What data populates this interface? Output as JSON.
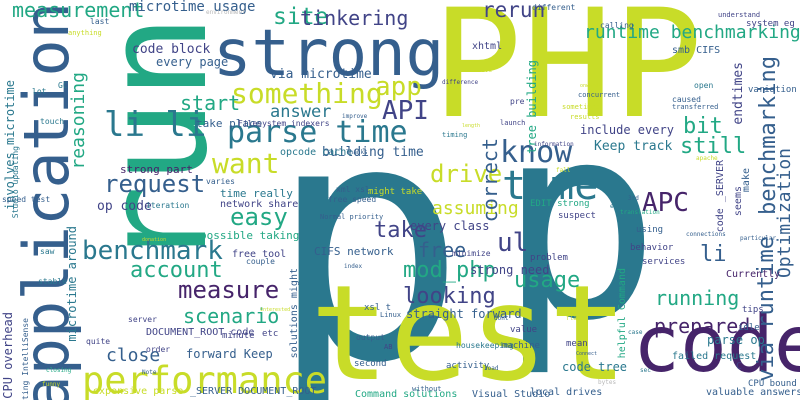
{
  "palette": {
    "purple": "#46246a",
    "indigo": "#414487",
    "blue": "#355f8d",
    "teal": "#2a788e",
    "green": "#22a884",
    "lime": "#7ad151",
    "yellow": "#c8dc28",
    "gray": "#b8b8b8"
  },
  "words": [
    {
      "text": "PHP",
      "color": "yellow"
    },
    {
      "text": "p",
      "color": "teal"
    },
    {
      "text": "test",
      "color": "yellow"
    },
    {
      "text": "run",
      "color": "green"
    },
    {
      "text": "strong",
      "color": "blue"
    },
    {
      "text": "application",
      "color": "blue"
    },
    {
      "text": "code",
      "color": "purple"
    },
    {
      "text": "performance",
      "color": "yellow"
    },
    {
      "text": "parse time",
      "color": "teal"
    },
    {
      "text": "li li",
      "color": "teal"
    },
    {
      "text": "time",
      "color": "teal"
    },
    {
      "text": "something",
      "color": "yellow"
    },
    {
      "text": "know",
      "color": "blue"
    },
    {
      "text": "benchmark",
      "color": "teal"
    },
    {
      "text": "measure",
      "color": "purple"
    },
    {
      "text": "site",
      "color": "green"
    },
    {
      "text": "tinkering",
      "color": "indigo"
    },
    {
      "text": "rerun",
      "color": "indigo"
    },
    {
      "text": "runtime benchmarking",
      "color": "green"
    },
    {
      "text": "measurement",
      "color": "green"
    },
    {
      "text": "app",
      "color": "yellow"
    },
    {
      "text": "API",
      "color": "indigo"
    },
    {
      "text": "answer",
      "color": "teal"
    },
    {
      "text": "want",
      "color": "yellow"
    },
    {
      "text": "request",
      "color": "blue"
    },
    {
      "text": "easy",
      "color": "green"
    },
    {
      "text": "account",
      "color": "green"
    },
    {
      "text": "drive",
      "color": "yellow"
    },
    {
      "text": "APC",
      "color": "purple"
    },
    {
      "text": "ul",
      "color": "indigo"
    },
    {
      "text": "take",
      "color": "indigo"
    },
    {
      "text": "free",
      "color": "blue"
    },
    {
      "text": "mod_php",
      "color": "green"
    },
    {
      "text": "usage",
      "color": "green"
    },
    {
      "text": "looking",
      "color": "indigo"
    },
    {
      "text": "running",
      "color": "green"
    },
    {
      "text": "prepared",
      "color": "purple"
    },
    {
      "text": "scenario",
      "color": "green"
    },
    {
      "text": "close",
      "color": "blue"
    },
    {
      "text": "bit",
      "color": "green"
    },
    {
      "text": "still",
      "color": "green"
    },
    {
      "text": "li",
      "color": "blue"
    },
    {
      "text": "reasoning",
      "color": "green"
    },
    {
      "text": "start",
      "color": "green"
    },
    {
      "text": "assuming",
      "color": "yellow"
    },
    {
      "text": "correct",
      "color": "blue"
    },
    {
      "text": "benchmarking",
      "color": "blue"
    },
    {
      "text": "Optimization",
      "color": "blue"
    },
    {
      "text": "via runtime",
      "color": "blue"
    },
    {
      "text": "microtime usage",
      "color": "blue"
    },
    {
      "text": "code block",
      "color": "indigo"
    },
    {
      "text": "every page",
      "color": "blue"
    },
    {
      "text": "via microtime",
      "color": "blue"
    },
    {
      "text": "building time",
      "color": "blue"
    },
    {
      "text": "Keep track",
      "color": "teal"
    },
    {
      "text": "include every",
      "color": "indigo"
    },
    {
      "text": "endtimes",
      "color": "indigo"
    },
    {
      "text": "strong need",
      "color": "indigo"
    },
    {
      "text": "straight forward",
      "color": "blue"
    },
    {
      "text": "every class",
      "color": "indigo"
    },
    {
      "text": "forward Keep",
      "color": "blue"
    },
    {
      "text": "parse op",
      "color": "teal"
    },
    {
      "text": "code tree",
      "color": "teal"
    },
    {
      "text": "local drives",
      "color": "blue"
    },
    {
      "text": "valuable answers",
      "color": "blue"
    },
    {
      "text": "expensive parse",
      "color": "yellow"
    },
    {
      "text": "_SERVER DOCUMENT_ROOT",
      "color": "blue"
    },
    {
      "text": "DOCUMENT_ROOT code",
      "color": "indigo"
    },
    {
      "text": "CPU overhead",
      "color": "indigo"
    },
    {
      "text": "microtime around",
      "color": "teal"
    },
    {
      "text": "involves microtime",
      "color": "teal"
    },
    {
      "text": "op code",
      "color": "indigo"
    },
    {
      "text": "strong part",
      "color": "purple"
    },
    {
      "text": "opcode cache",
      "color": "teal"
    },
    {
      "text": "take place",
      "color": "blue"
    },
    {
      "text": "Filesystem indexers",
      "color": "indigo"
    },
    {
      "text": "time really",
      "color": "teal"
    },
    {
      "text": "network share",
      "color": "indigo"
    },
    {
      "text": "possible taking",
      "color": "green"
    },
    {
      "text": "free tool",
      "color": "indigo"
    },
    {
      "text": "CIFS network",
      "color": "blue"
    },
    {
      "text": "solutions might",
      "color": "blue"
    },
    {
      "text": "Command solutions",
      "color": "green"
    },
    {
      "text": "Visual Studio",
      "color": "blue"
    },
    {
      "text": "smb CIFS",
      "color": "blue"
    },
    {
      "text": "xhtml",
      "color": "indigo"
    },
    {
      "text": "might take",
      "color": "yellow"
    },
    {
      "text": "EDIT strong",
      "color": "green"
    },
    {
      "text": "failed request",
      "color": "teal"
    },
    {
      "text": "CPU bound",
      "color": "blue"
    },
    {
      "text": "tree building",
      "color": "green"
    },
    {
      "text": "code _SERVER",
      "color": "indigo"
    },
    {
      "text": "seems",
      "color": "indigo"
    },
    {
      "text": "make",
      "color": "blue"
    },
    {
      "text": "variation",
      "color": "blue"
    },
    {
      "text": "system eg",
      "color": "indigo"
    },
    {
      "text": "understand",
      "color": "indigo"
    },
    {
      "text": "idle",
      "color": "blue"
    },
    {
      "text": "tips",
      "color": "indigo"
    },
    {
      "text": "Currently",
      "color": "purple"
    },
    {
      "text": "services",
      "color": "indigo"
    },
    {
      "text": "behavior",
      "color": "indigo"
    },
    {
      "text": "using",
      "color": "blue"
    },
    {
      "text": "suspect",
      "color": "indigo"
    },
    {
      "text": "problem",
      "color": "indigo"
    },
    {
      "text": "minimize",
      "color": "indigo"
    },
    {
      "text": "value",
      "color": "indigo"
    },
    {
      "text": "helpful Command",
      "color": "green"
    },
    {
      "text": "mean",
      "color": "indigo"
    },
    {
      "text": "machine",
      "color": "blue"
    },
    {
      "text": "activity",
      "color": "blue"
    },
    {
      "text": "housekeeping",
      "color": "teal"
    },
    {
      "text": "second",
      "color": "blue"
    },
    {
      "text": "output",
      "color": "blue"
    },
    {
      "text": "Linux",
      "color": "blue"
    },
    {
      "text": "xsl t",
      "color": "blue"
    },
    {
      "text": "minute",
      "color": "indigo"
    },
    {
      "text": "etc",
      "color": "indigo"
    },
    {
      "text": "order",
      "color": "indigo"
    },
    {
      "text": "quite",
      "color": "indigo"
    },
    {
      "text": "server",
      "color": "indigo"
    },
    {
      "text": "stable",
      "color": "teal"
    },
    {
      "text": "saw",
      "color": "teal"
    },
    {
      "text": "couple",
      "color": "blue"
    },
    {
      "text": "varies",
      "color": "blue"
    },
    {
      "text": "iteration",
      "color": "teal"
    },
    {
      "text": "xml xsl",
      "color": "blue"
    },
    {
      "text": "free speed",
      "color": "blue"
    },
    {
      "text": "Normal priority",
      "color": "blue"
    },
    {
      "text": "speed test",
      "color": "blue"
    },
    {
      "text": "updating IntelliSense",
      "color": "blue"
    },
    {
      "text": "Studio updating",
      "color": "teal"
    },
    {
      "text": "touch",
      "color": "teal"
    },
    {
      "text": "lot",
      "color": "teal"
    },
    {
      "text": "GC",
      "color": "teal"
    },
    {
      "text": "last",
      "color": "blue"
    },
    {
      "text": "anything",
      "color": "yellow"
    },
    {
      "text": "different",
      "color": "blue"
    },
    {
      "text": "calling",
      "color": "blue"
    },
    {
      "text": "caused",
      "color": "blue"
    },
    {
      "text": "transferred",
      "color": "blue"
    },
    {
      "text": "open",
      "color": "teal"
    },
    {
      "text": "concurrent",
      "color": "blue"
    },
    {
      "text": "sometimes",
      "color": "yellow"
    },
    {
      "text": "results",
      "color": "yellow"
    },
    {
      "text": "launch",
      "color": "indigo"
    },
    {
      "text": "timing",
      "color": "teal"
    },
    {
      "text": "pre",
      "color": "indigo"
    },
    {
      "text": "improve",
      "color": "blue"
    },
    {
      "text": "Thanks",
      "color": "blue"
    },
    {
      "text": "information",
      "color": "indigo"
    },
    {
      "text": "difference",
      "color": "indigo"
    },
    {
      "text": "alive",
      "color": "yellow"
    },
    {
      "text": "translation",
      "color": "green"
    },
    {
      "text": "connections",
      "color": "blue"
    },
    {
      "text": "particular",
      "color": "blue"
    },
    {
      "text": "case",
      "color": "teal"
    },
    {
      "text": "bytes",
      "color": "gray"
    },
    {
      "text": "Note",
      "color": "blue"
    },
    {
      "text": "funny",
      "color": "yellow"
    },
    {
      "text": "closing",
      "color": "green"
    },
    {
      "text": "without",
      "color": "blue"
    },
    {
      "text": "load",
      "color": "blue"
    },
    {
      "text": "dont",
      "color": "blue"
    },
    {
      "text": "Connect",
      "color": "blue"
    },
    {
      "text": "flag",
      "color": "yellow"
    },
    {
      "text": "fall",
      "color": "yellow"
    },
    {
      "text": "apache",
      "color": "yellow"
    },
    {
      "text": "environment",
      "color": "gray"
    },
    {
      "text": "length",
      "color": "yellow"
    },
    {
      "text": "onwards",
      "color": "yellow"
    },
    {
      "text": "donation",
      "color": "yellow"
    },
    {
      "text": "interested",
      "color": "yellow"
    },
    {
      "text": "AB",
      "color": "indigo"
    },
    {
      "text": "index",
      "color": "blue"
    },
    {
      "text": "e g",
      "color": "teal"
    },
    {
      "text": "3rd",
      "color": "blue"
    },
    {
      "text": "C",
      "color": "indigo"
    },
    {
      "text": "sec",
      "color": "teal"
    }
  ]
}
